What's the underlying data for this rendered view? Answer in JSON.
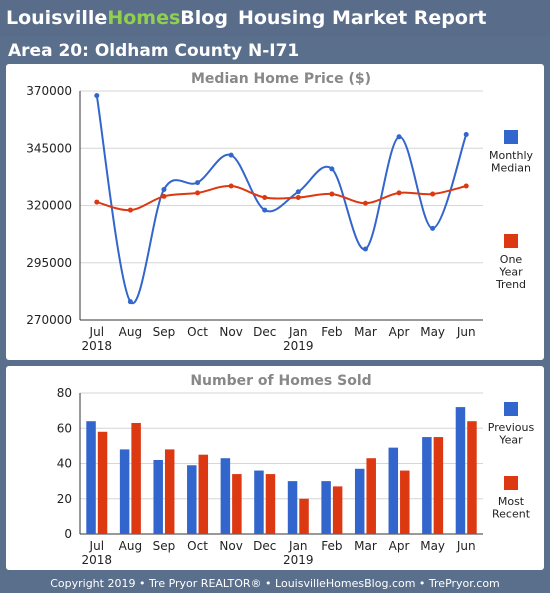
{
  "header": {
    "brand_part1": "Louisville",
    "brand_part2": "Homes",
    "brand_part3": "Blog",
    "report_title": "Housing Market Report",
    "brand_green": "#8fd14f"
  },
  "area_title": "Area 20: Oldham County N-I71",
  "colors": {
    "blue": "#3366cc",
    "red": "#dc3912"
  },
  "footer": "Copyright 2019 • Tre Pryor REALTOR® • LouisvilleHomesBlog.com • TrePryor.com",
  "chart_data": [
    {
      "type": "line",
      "title": "Median Home Price ($)",
      "categories": [
        "Jul",
        "Aug",
        "Sep",
        "Oct",
        "Nov",
        "Dec",
        "Jan",
        "Feb",
        "Mar",
        "Apr",
        "May",
        "Jun"
      ],
      "year_labels": [
        {
          "index": 0,
          "label": "2018"
        },
        {
          "index": 6,
          "label": "2019"
        }
      ],
      "ylim": [
        270000,
        370000
      ],
      "yticks": [
        270000,
        295000,
        320000,
        345000,
        370000
      ],
      "series": [
        {
          "name": "Monthly Median",
          "legend_lines": [
            "Monthly",
            "Median"
          ],
          "color": "#3366cc",
          "values": [
            368000,
            278000,
            327000,
            330000,
            342000,
            318000,
            326000,
            336000,
            301000,
            350000,
            310000,
            351000
          ]
        },
        {
          "name": "One Year Trend",
          "legend_lines": [
            "One",
            "Year",
            "Trend"
          ],
          "color": "#dc3912",
          "values": [
            321500,
            318000,
            324000,
            325500,
            328500,
            323500,
            323500,
            325000,
            321000,
            325500,
            325000,
            328500
          ]
        }
      ],
      "grid": true,
      "legend": "right"
    },
    {
      "type": "bar",
      "title": "Number of Homes Sold",
      "categories": [
        "Jul",
        "Aug",
        "Sep",
        "Oct",
        "Nov",
        "Dec",
        "Jan",
        "Feb",
        "Mar",
        "Apr",
        "May",
        "Jun"
      ],
      "year_labels": [
        {
          "index": 0,
          "label": "2018"
        },
        {
          "index": 6,
          "label": "2019"
        }
      ],
      "ylim": [
        0,
        80
      ],
      "yticks": [
        0,
        20,
        40,
        60,
        80
      ],
      "series": [
        {
          "name": "Previous Year",
          "legend_lines": [
            "Previous",
            "Year"
          ],
          "color": "#3366cc",
          "values": [
            64,
            48,
            42,
            39,
            43,
            36,
            30,
            30,
            37,
            49,
            55,
            72
          ]
        },
        {
          "name": "Most Recent",
          "legend_lines": [
            "Most",
            "Recent"
          ],
          "color": "#dc3912",
          "values": [
            58,
            63,
            48,
            45,
            34,
            34,
            20,
            27,
            43,
            36,
            55,
            64
          ]
        }
      ],
      "grid": true,
      "legend": "right"
    }
  ]
}
